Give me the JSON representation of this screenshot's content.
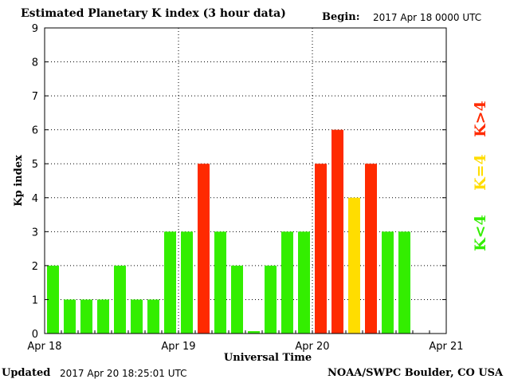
{
  "header": {
    "title": "Estimated Planetary K index (3 hour data)",
    "begin_label": "Begin:",
    "begin_value": "2017 Apr 18 0000 UTC"
  },
  "footer": {
    "updated_label": "Updated",
    "updated_value": "2017 Apr 20 18:25:01 UTC",
    "credit": "NOAA/SWPC Boulder, CO USA"
  },
  "legend": [
    {
      "label": "K<4",
      "color": "#33ee00"
    },
    {
      "label": "K=4",
      "color": "#ffdd00"
    },
    {
      "label": "K>4",
      "color": "#ff2a00"
    }
  ],
  "chart_data": {
    "type": "bar",
    "title": "Estimated Planetary K index (3 hour data)",
    "xlabel": "Universal Time",
    "ylabel": "Kp index",
    "ylim": [
      0,
      9
    ],
    "yticks": [
      "0",
      "1",
      "2",
      "3",
      "4",
      "5",
      "6",
      "7",
      "8",
      "9"
    ],
    "xticks": [
      "Apr 18",
      "Apr 19",
      "Apr 20",
      "Apr 21"
    ],
    "x_range_days": 3,
    "bins_per_day": 8,
    "grid": true,
    "values": [
      2,
      1,
      1,
      1,
      2,
      1,
      1,
      3,
      3,
      5,
      3,
      2,
      0.07,
      2,
      3,
      3,
      5,
      6,
      4,
      5,
      3,
      3
    ],
    "colors": {
      "low": "#33ee00",
      "mid": "#ffdd00",
      "high": "#ff2a00"
    }
  }
}
